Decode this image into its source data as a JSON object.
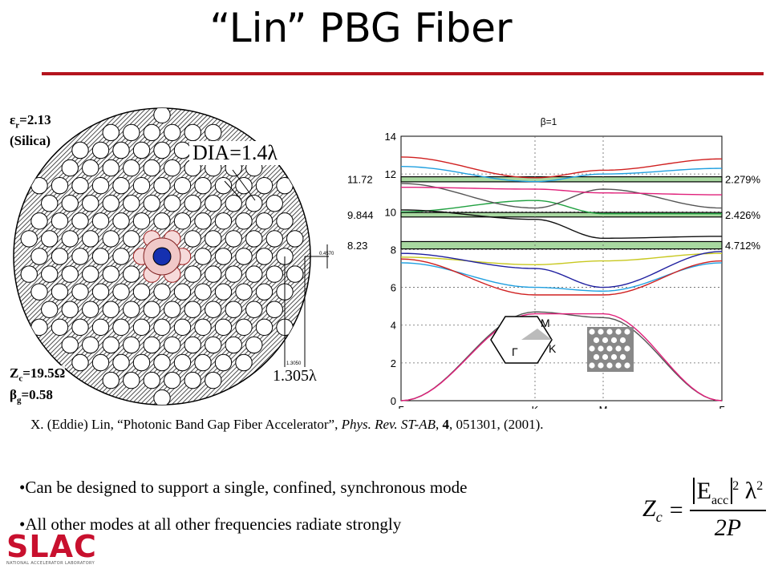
{
  "slide": {
    "title": "“Lin” PBG Fiber",
    "colors": {
      "accent_rule": "#b4141e",
      "logo_red": "#c8102e"
    }
  },
  "fiber": {
    "eps_symbol": "ε",
    "eps_sub": "r",
    "eps_value": "=2.13",
    "material": "(Silica)",
    "dia_label": "DIA=1.4λ",
    "dim_label": "1.305λ",
    "zc_symbol": "Z",
    "zc_sub": "c",
    "zc_value": "=19.5Ω",
    "beta_symbol": "β",
    "beta_sub": "g",
    "beta_value": "=0.58",
    "inner_dim_small": "0.4570",
    "inner_dim_small2": "1.3050"
  },
  "band_diagram": {
    "beta_label": "β=1",
    "y_ticks": [
      "0",
      "2",
      "4",
      "6",
      "8",
      "10",
      "12",
      "14"
    ],
    "x_ticks": [
      "Γ",
      "K",
      "M",
      "Γ"
    ],
    "gap_left_labels": [
      "11.72",
      "9.844",
      "8.23"
    ],
    "gap_right_labels": [
      "2.279%",
      "2.426%",
      "4.712%"
    ],
    "inset_labels": {
      "m": "M",
      "k": "K",
      "g": "Γ"
    },
    "band_colors": [
      "#555555",
      "#e0207a",
      "#20a0e0",
      "#d02020",
      "#c8c820",
      "#2020a0",
      "#20a040",
      "#101010"
    ]
  },
  "chart_data": {
    "type": "line",
    "title": "β=1",
    "xlabel": "",
    "ylabel": "",
    "x": [
      "Γ",
      "K",
      "M",
      "Γ"
    ],
    "ylim": [
      0,
      14
    ],
    "grid": true,
    "band_gaps": [
      {
        "center": 11.72,
        "width_percent": "2.279%"
      },
      {
        "center": 9.844,
        "width_percent": "2.426%"
      },
      {
        "center": 8.23,
        "width_percent": "4.712%"
      }
    ],
    "series": [
      {
        "values": [
          0,
          4.7,
          4.4,
          0
        ]
      },
      {
        "values": [
          0,
          4.6,
          4.6,
          0
        ]
      },
      {
        "values": [
          7.3,
          6.0,
          5.8,
          7.3
        ]
      },
      {
        "values": [
          7.5,
          5.6,
          5.6,
          7.4
        ]
      },
      {
        "values": [
          7.6,
          7.2,
          7.4,
          7.8
        ]
      },
      {
        "values": [
          7.8,
          7.0,
          6.0,
          7.9
        ]
      },
      {
        "values": [
          10.0,
          10.6,
          9.9,
          9.9
        ]
      },
      {
        "values": [
          10.1,
          9.6,
          8.6,
          8.7
        ]
      },
      {
        "values": [
          11.5,
          10.2,
          11.2,
          10.2
        ]
      },
      {
        "values": [
          11.3,
          11.2,
          11.0,
          10.9
        ]
      },
      {
        "values": [
          12.4,
          11.6,
          12.0,
          12.3
        ]
      },
      {
        "values": [
          12.9,
          11.8,
          12.2,
          12.8
        ]
      }
    ]
  },
  "citation": {
    "prefix": "X. (Eddie) Lin, “Photonic Band Gap Fiber Accelerator”, ",
    "journal": "Phys. Rev. ST-AB",
    "sep": ", ",
    "volume": "4",
    "rest": ", 051301, (2001)."
  },
  "bullets": [
    "•Can be designed to support a single, confined, synchronous mode",
    "•All other modes at all other frequencies radiate strongly"
  ],
  "equation": {
    "lhs": "Z",
    "lhs_sub": "c",
    "eq": "=",
    "num_var": "E",
    "num_sub": "acc",
    "exp": "2",
    "lambda": "λ",
    "den": "2P"
  },
  "logo": {
    "text": "SLAC",
    "subtitle": "NATIONAL ACCELERATOR LABORATORY"
  }
}
